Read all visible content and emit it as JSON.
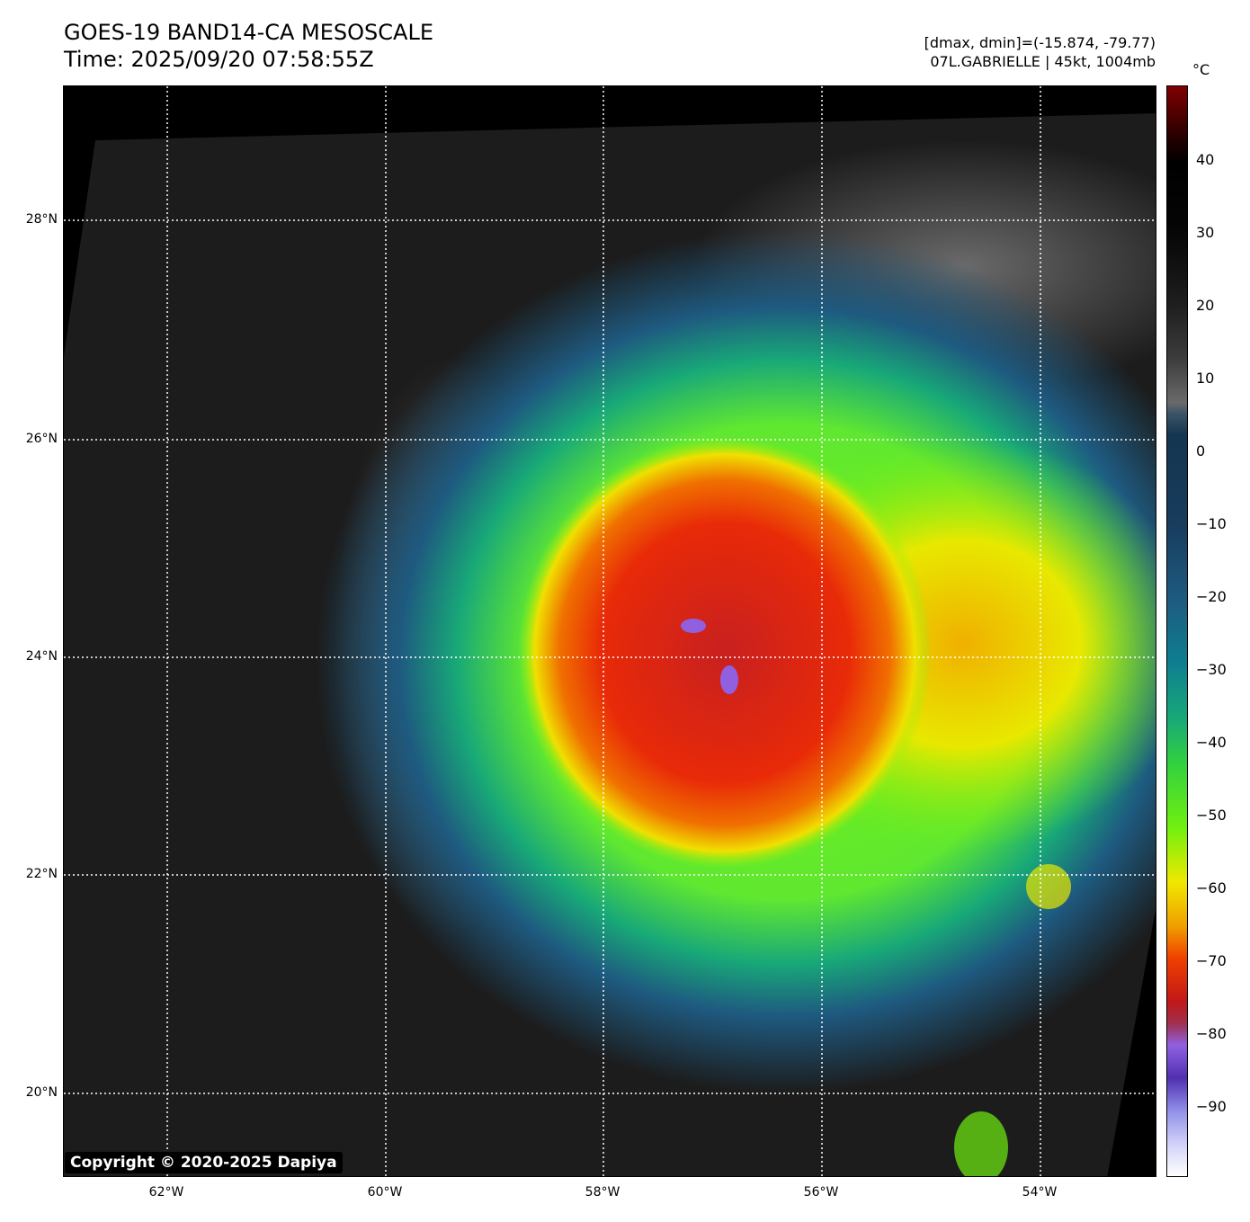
{
  "title": {
    "line1": "GOES-19 BAND14-CA MESOSCALE",
    "line2": "Time: 2025/09/20 07:58:55Z"
  },
  "info": {
    "line1": "[dmax, dmin]=(-15.874, -79.77)",
    "line2": "07L.GABRIELLE | 45kt, 1004mb"
  },
  "colorbar": {
    "unit": "°C",
    "range": [
      -100,
      50
    ],
    "ticks": [
      "40",
      "30",
      "20",
      "10",
      "0",
      "−10",
      "−20",
      "−30",
      "−40",
      "−50",
      "−60",
      "−70",
      "−80",
      "−90"
    ]
  },
  "lat_labels": [
    "28°N",
    "26°N",
    "24°N",
    "22°N",
    "20°N"
  ],
  "lon_labels": [
    "62°W",
    "60°W",
    "58°W",
    "56°W",
    "54°W"
  ],
  "copyright": "Copyright © 2020-2025 Dapiya"
}
